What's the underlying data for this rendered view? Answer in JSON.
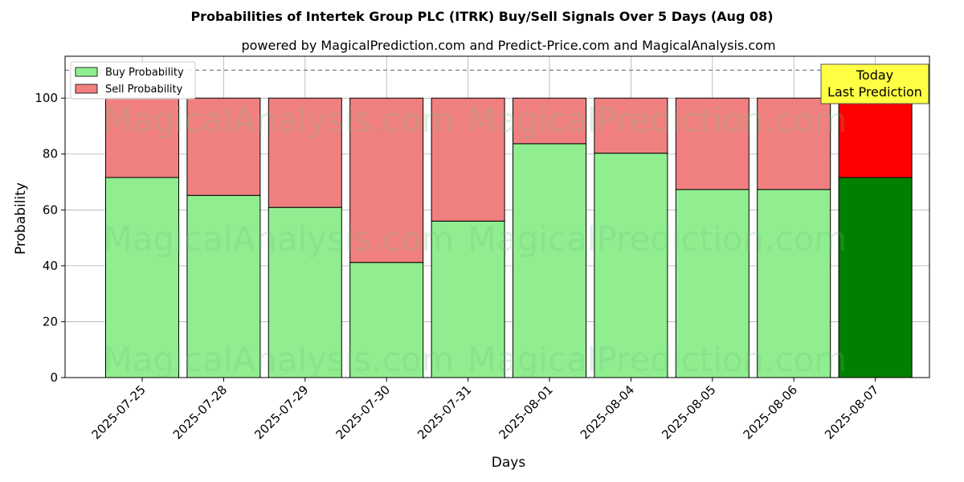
{
  "title": "Probabilities of Intertek Group PLC (ITRK) Buy/Sell Signals Over 5 Days (Aug 08)",
  "subtitle": "powered by MagicalPrediction.com and Predict-Price.com and MagicalAnalysis.com",
  "watermarks": [
    "MagicalAnalysis.com",
    "MagicalPrediction.com"
  ],
  "annotation": {
    "line1": "Today",
    "line2": "Last Prediction"
  },
  "colors": {
    "buy": "#90ee90",
    "sell": "#f08080",
    "buy_highlight": "#008000",
    "sell_highlight": "#ff0000",
    "annotation_bg": "#ffff44"
  },
  "chart_data": {
    "type": "bar",
    "stacked": true,
    "categories": [
      "2025-07-25",
      "2025-07-28",
      "2025-07-29",
      "2025-07-30",
      "2025-07-31",
      "2025-08-01",
      "2025-08-04",
      "2025-08-05",
      "2025-08-06",
      "2025-08-07"
    ],
    "series": [
      {
        "name": "Buy Probability",
        "values": [
          71.6,
          65.2,
          60.9,
          41.2,
          56.0,
          83.7,
          80.3,
          67.3,
          67.3,
          71.6
        ]
      },
      {
        "name": "Sell Probability",
        "values": [
          28.4,
          34.8,
          39.1,
          58.8,
          44.0,
          16.3,
          19.7,
          32.7,
          32.7,
          28.4
        ]
      }
    ],
    "highlighted_category": "2025-08-07",
    "reference_line": 110,
    "xlabel": "Days",
    "ylabel": "Probability",
    "ylim": [
      0,
      115
    ],
    "yticks": [
      0,
      20,
      40,
      60,
      80,
      100
    ],
    "grid": true,
    "legend_position": "top-left"
  }
}
